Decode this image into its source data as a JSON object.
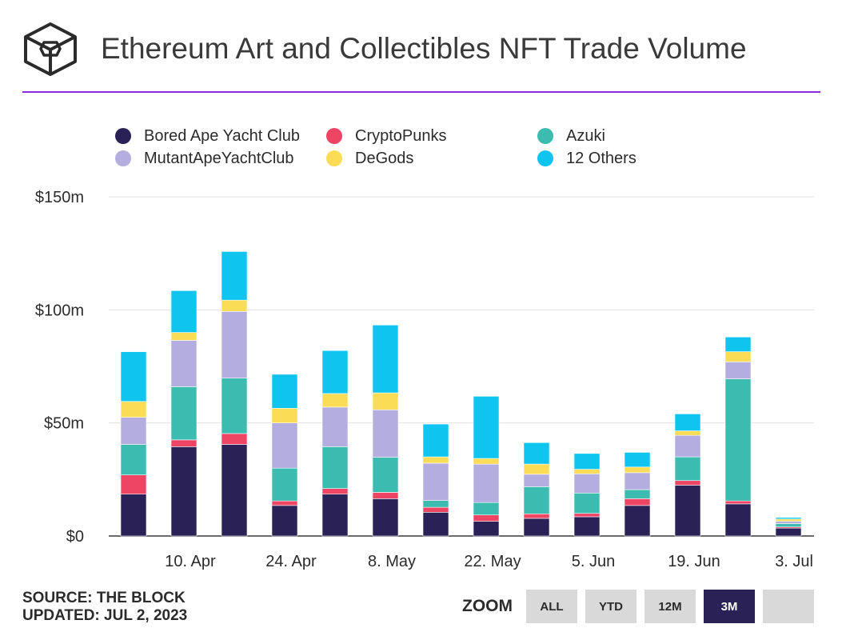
{
  "header": {
    "title": "Ethereum Art and Collectibles NFT Trade Volume",
    "logo_icon": "the-block-cube-icon"
  },
  "legend": [
    {
      "label": "Bored Ape Yacht Club",
      "color": "#2a2257"
    },
    {
      "label": "CryptoPunks",
      "color": "#ef4565"
    },
    {
      "label": "Azuki",
      "color": "#3cbcb1"
    },
    {
      "label": "MutantApeYachtClub",
      "color": "#b4aee0"
    },
    {
      "label": "DeGods",
      "color": "#fbdc57"
    },
    {
      "label": "12 Others",
      "color": "#0fc5ef"
    }
  ],
  "chart_data": {
    "type": "bar",
    "stacked": true,
    "title": "Ethereum Art and Collectibles NFT Trade Volume",
    "x": [
      "2023-04-02",
      "2023-04-09",
      "2023-04-16",
      "2023-04-23",
      "2023-04-30",
      "2023-05-07",
      "2023-05-14",
      "2023-05-21",
      "2023-05-28",
      "2023-06-04",
      "2023-06-11",
      "2023-06-18",
      "2023-06-25",
      "2023-07-02"
    ],
    "x_tick_labels": [
      "10. Apr",
      "24. Apr",
      "8. May",
      "22. May",
      "5. Jun",
      "19. Jun",
      "3. Jul"
    ],
    "y_tick_labels": [
      "$0",
      "$50m",
      "$100m",
      "$150m"
    ],
    "ylim": [
      0,
      150
    ],
    "grid": true,
    "legend_position": "top",
    "series": [
      {
        "name": "Bored Ape Yacht Club",
        "color": "#2a2257",
        "values": [
          18.5,
          39.5,
          40.5,
          13.5,
          18.5,
          16.5,
          10.5,
          6.5,
          7.8,
          8.5,
          13.5,
          22.5,
          14.2,
          3.5
        ]
      },
      {
        "name": "CryptoPunks",
        "color": "#ef4565",
        "values": [
          8.5,
          3.0,
          4.8,
          2.0,
          2.5,
          2.8,
          2.2,
          2.8,
          2.0,
          1.5,
          3.0,
          2.0,
          1.3,
          0.5
        ]
      },
      {
        "name": "Azuki",
        "color": "#3cbcb1",
        "values": [
          13.5,
          23.5,
          24.5,
          14.5,
          18.5,
          15.5,
          3.0,
          5.5,
          12.0,
          9.0,
          4.0,
          10.5,
          54.0,
          1.5
        ]
      },
      {
        "name": "MutantApeYachtClub",
        "color": "#b4aee0",
        "values": [
          12.0,
          20.5,
          29.5,
          20.0,
          17.5,
          21.0,
          16.5,
          17.0,
          5.5,
          8.5,
          7.5,
          9.5,
          7.5,
          1.0
        ]
      },
      {
        "name": "DeGods",
        "color": "#fbdc57",
        "values": [
          7.0,
          3.5,
          5.0,
          6.5,
          6.0,
          7.5,
          2.8,
          2.5,
          4.5,
          2.0,
          2.5,
          2.0,
          4.5,
          1.0
        ]
      },
      {
        "name": "12 Others",
        "color": "#0fc5ef",
        "values": [
          22.0,
          18.5,
          21.5,
          15.0,
          19.0,
          30.0,
          14.5,
          27.5,
          9.5,
          7.0,
          6.5,
          7.5,
          6.5,
          0.7
        ]
      }
    ]
  },
  "footer": {
    "source": "SOURCE: THE BLOCK",
    "updated": "UPDATED: JUL 2, 2023"
  },
  "zoom": {
    "label": "ZOOM",
    "buttons": [
      {
        "label": "ALL",
        "active": false
      },
      {
        "label": "YTD",
        "active": false
      },
      {
        "label": "12M",
        "active": false
      },
      {
        "label": "3M",
        "active": true
      },
      {
        "label": "",
        "active": false
      }
    ]
  }
}
